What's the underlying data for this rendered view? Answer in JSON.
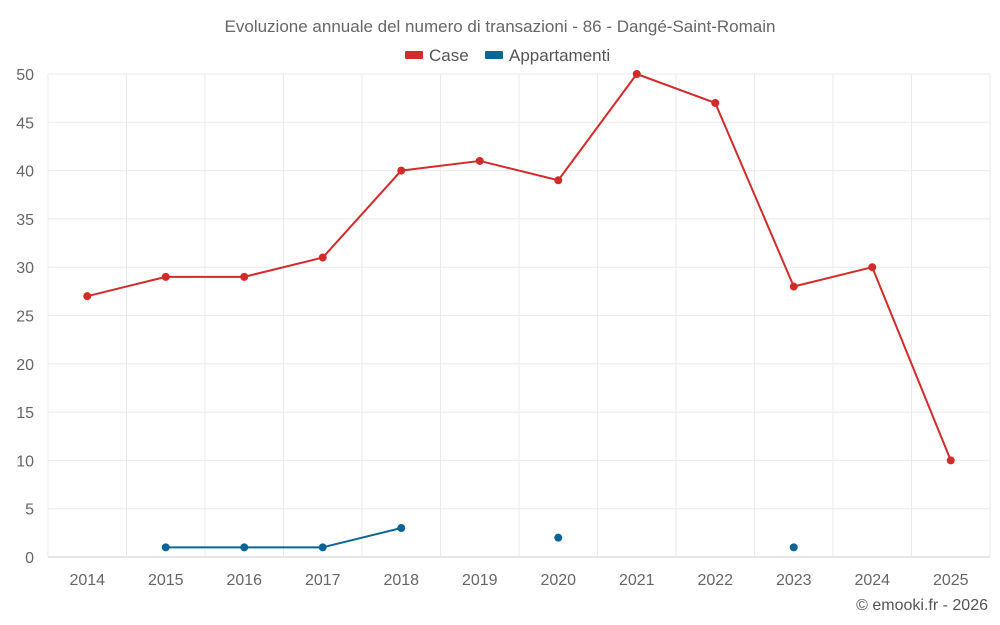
{
  "chart_data": {
    "type": "line",
    "title": "Evoluzione annuale del numero di transazioni - 86 - Dangé-Saint-Romain",
    "categories": [
      "2014",
      "2015",
      "2016",
      "2017",
      "2018",
      "2019",
      "2020",
      "2021",
      "2022",
      "2023",
      "2024",
      "2025"
    ],
    "series": [
      {
        "name": "Case",
        "color": "#d32a2a",
        "values": [
          27,
          29,
          29,
          31,
          40,
          41,
          39,
          50,
          47,
          28,
          30,
          10
        ]
      },
      {
        "name": "Appartamenti",
        "color": "#0a6496",
        "values": [
          null,
          1,
          1,
          1,
          3,
          null,
          2,
          null,
          null,
          1,
          null,
          null
        ]
      }
    ],
    "ylim": [
      0,
      50
    ],
    "yticks": [
      0,
      5,
      10,
      15,
      20,
      25,
      30,
      35,
      40,
      45,
      50
    ],
    "xlabel": "",
    "ylabel": "",
    "grid": true,
    "legend_position": "top-center"
  },
  "credit": "© emooki.fr - 2026"
}
